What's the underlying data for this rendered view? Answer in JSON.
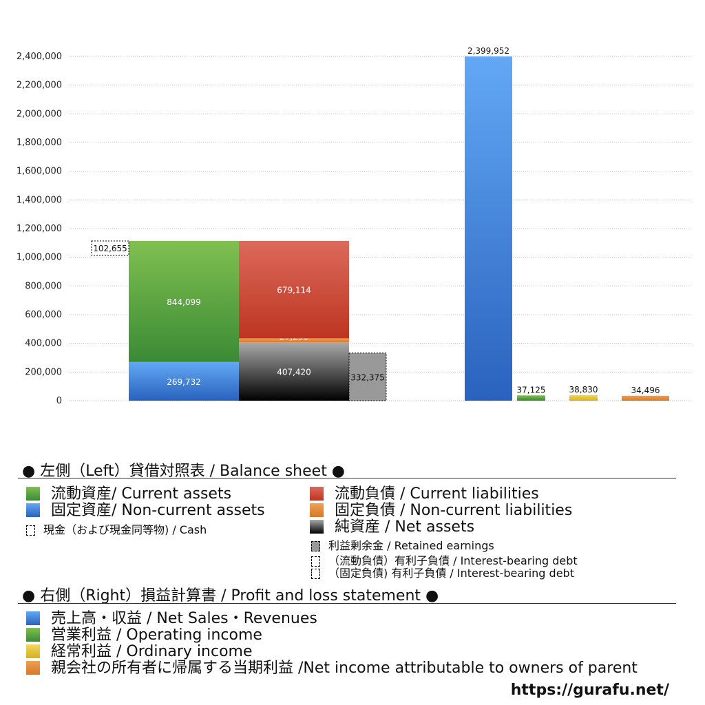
{
  "chart_data": {
    "type": "bar",
    "ylim": [
      0,
      2400000
    ],
    "yticks": [
      0,
      200000,
      400000,
      600000,
      800000,
      1000000,
      1200000,
      1400000,
      1600000,
      1800000,
      2000000,
      2200000,
      2400000
    ],
    "grid": true,
    "balance_sheet": {
      "assets": [
        {
          "name": "流動資産/ Current assets",
          "value": 844099,
          "color": "#4a9a3c"
        },
        {
          "name": "固定資産/ Non-current assets",
          "value": 269732,
          "color": "#3b7fd8"
        }
      ],
      "liabilities": [
        {
          "name": "流動負債 /  Current liabilities",
          "value": 679114,
          "color": "#cc4a35"
        },
        {
          "name": "固定負債 / Non-current liabilities",
          "value": 27296,
          "color": "#e08a35"
        },
        {
          "name": "純資産 / Net assets",
          "value": 407420,
          "color": "#444444"
        }
      ],
      "cash": 102655,
      "retained_earnings": 332375
    },
    "profit_loss": [
      {
        "name": "売上高・収益 / Net Sales・Revenues",
        "value": 2399952,
        "color": "#3b7fd8"
      },
      {
        "name": "営業利益 / Operating income",
        "value": 37125,
        "color": "#4a9a3c"
      },
      {
        "name": "経常利益 / Ordinary income",
        "value": 38830,
        "color": "#e0c030"
      },
      {
        "name": "親会社の所有者に帰属する当期利益 /Net income attributable to owners of parent",
        "value": 34496,
        "color": "#e08a35"
      }
    ]
  },
  "legend": {
    "left_title": "● 左側（Left）貸借対照表 / Balance sheet ●",
    "current_assets": "流動資産/ Current assets",
    "noncurrent_assets": "固定資産/ Non-current assets",
    "cash": "現金（および現金同等物) / Cash",
    "current_liabilities": "流動負債 /  Current liabilities",
    "noncurrent_liabilities": "固定負債 / Non-current liabilities",
    "net_assets": "純資産 / Net assets",
    "retained": "利益剰余金 / Retained earnings",
    "debt_current": "（流動負債）有利子負債 / Interest-bearing debt",
    "debt_noncurrent": "（固定負債) 有利子負債 / Interest-bearing debt",
    "right_title": "● 右側（Right）損益計算書 / Profit and loss statement ●",
    "sales": "売上高・収益 / Net Sales・Revenues",
    "operating": "営業利益 / Operating income",
    "ordinary": "経常利益 / Ordinary income",
    "net_income": "親会社の所有者に帰属する当期利益 /Net income attributable to owners of parent"
  },
  "footer": {
    "url": "https://gurafu.net/"
  }
}
